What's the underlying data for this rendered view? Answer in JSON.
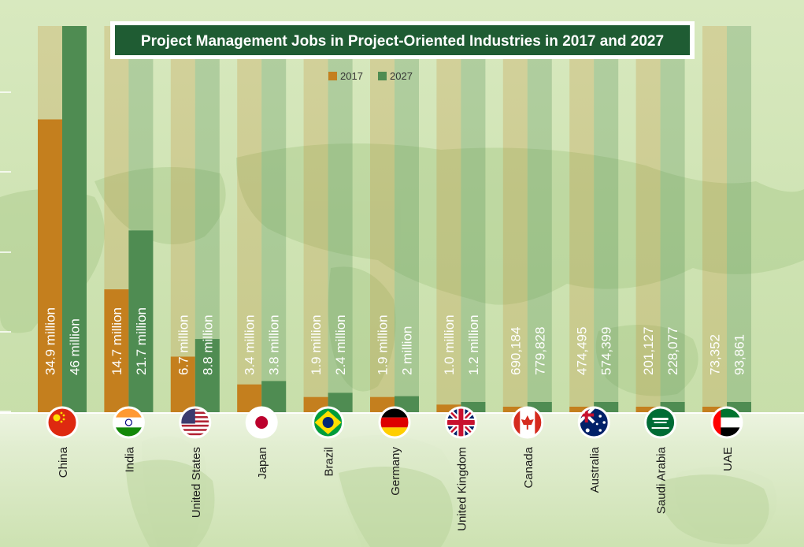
{
  "title": "Project Management Jobs in Project-Oriented Industries in 2017 and 2027",
  "colors": {
    "c2017": "#c47f1e",
    "c2027": "#4f8c52",
    "title_bg": "#1f5c33",
    "title_text": "#ffffff",
    "background": "#cfe3b4"
  },
  "chart_data": {
    "type": "bar",
    "title": "Project Management Jobs in Project-Oriented Industries in 2017 and 2027",
    "categories": [
      "China",
      "India",
      "United States",
      "Japan",
      "Brazil",
      "Germany",
      "United Kingdom",
      "Canada",
      "Australia",
      "Saudi Arabia",
      "UAE"
    ],
    "series": [
      {
        "name": "2017",
        "values": [
          34900000,
          14700000,
          6700000,
          3400000,
          1900000,
          1900000,
          1000000,
          690184,
          474495,
          201127,
          73352
        ],
        "labels": [
          "34.9 million",
          "14.7 million",
          "6.7 million",
          "3.4 million",
          "1.9 million",
          "1.9 million",
          "1.0 million",
          "690,184",
          "474,495",
          "201,127",
          "73,352"
        ]
      },
      {
        "name": "2027",
        "values": [
          46000000,
          21700000,
          8800000,
          3800000,
          2400000,
          2000000,
          1200000,
          779828,
          574399,
          228077,
          93861
        ],
        "labels": [
          "46 million",
          "21.7 million",
          "8.8 million",
          "3.8 million",
          "2.4 million",
          "2 million",
          "1.2 million",
          "779,828",
          "574,399",
          "228,077",
          "93,861"
        ]
      }
    ],
    "legend_position": "top-center",
    "flag_icons": [
      "china-flag-icon",
      "india-flag-icon",
      "united-states-flag-icon",
      "japan-flag-icon",
      "brazil-flag-icon",
      "germany-flag-icon",
      "united-kingdom-flag-icon",
      "canada-flag-icon",
      "australia-flag-icon",
      "saudi-arabia-flag-icon",
      "uae-flag-icon"
    ]
  }
}
